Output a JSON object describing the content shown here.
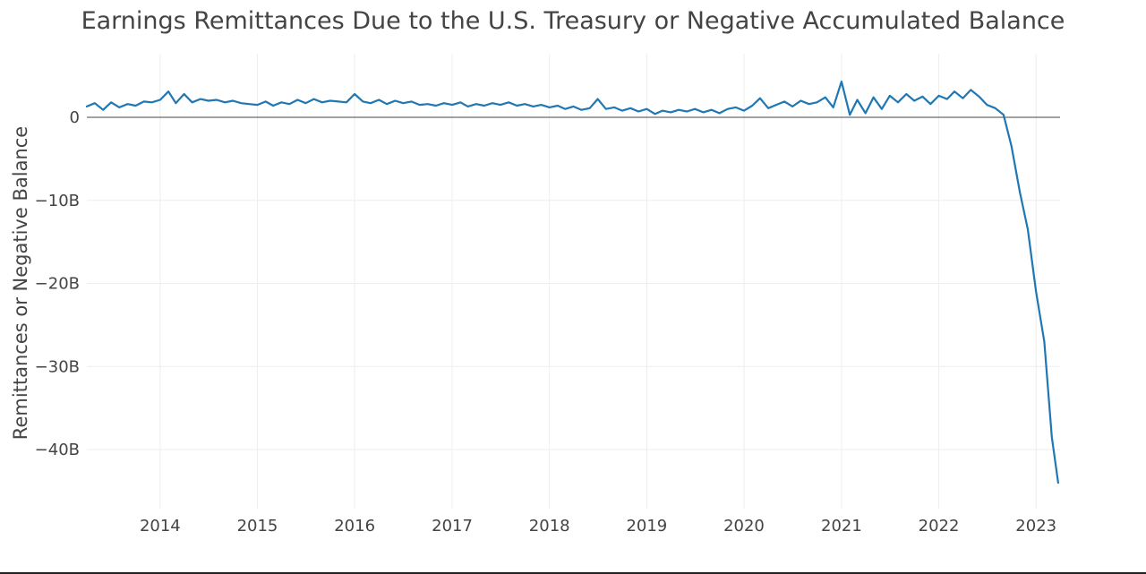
{
  "chart_data": {
    "type": "line",
    "title": "Earnings Remittances Due to the U.S. Treasury or Negative Accumulated Balance",
    "xlabel": "",
    "ylabel": "Remittances or Negative Balance",
    "x_range": [
      "2013-04-01",
      "2023-04-01"
    ],
    "ylim": [
      -46,
      5
    ],
    "x_ticks": [
      {
        "date": "2014-01-01",
        "label": "2014"
      },
      {
        "date": "2015-01-01",
        "label": "2015"
      },
      {
        "date": "2016-01-01",
        "label": "2016"
      },
      {
        "date": "2017-01-01",
        "label": "2017"
      },
      {
        "date": "2018-01-01",
        "label": "2018"
      },
      {
        "date": "2019-01-01",
        "label": "2019"
      },
      {
        "date": "2020-01-01",
        "label": "2020"
      },
      {
        "date": "2021-01-01",
        "label": "2021"
      },
      {
        "date": "2022-01-01",
        "label": "2022"
      },
      {
        "date": "2023-01-01",
        "label": "2023"
      }
    ],
    "y_ticks": [
      {
        "value": 0,
        "label": "0"
      },
      {
        "value": -10,
        "label": "−10B"
      },
      {
        "value": -20,
        "label": "−20B"
      },
      {
        "value": -30,
        "label": "−30B"
      },
      {
        "value": -40,
        "label": "−40B"
      }
    ],
    "grid": true,
    "zero_line": true,
    "series": [
      {
        "color": "#1f77b4",
        "x": [
          "2013-04-01",
          "2013-05-01",
          "2013-06-01",
          "2013-07-01",
          "2013-08-01",
          "2013-09-01",
          "2013-10-01",
          "2013-11-01",
          "2013-12-01",
          "2014-01-01",
          "2014-02-01",
          "2014-03-01",
          "2014-04-01",
          "2014-05-01",
          "2014-06-01",
          "2014-07-01",
          "2014-08-01",
          "2014-09-01",
          "2014-10-01",
          "2014-11-01",
          "2014-12-01",
          "2015-01-01",
          "2015-02-01",
          "2015-03-01",
          "2015-04-01",
          "2015-05-01",
          "2015-06-01",
          "2015-07-01",
          "2015-08-01",
          "2015-09-01",
          "2015-10-01",
          "2015-11-01",
          "2015-12-01",
          "2016-01-01",
          "2016-02-01",
          "2016-03-01",
          "2016-04-01",
          "2016-05-01",
          "2016-06-01",
          "2016-07-01",
          "2016-08-01",
          "2016-09-01",
          "2016-10-01",
          "2016-11-01",
          "2016-12-01",
          "2017-01-01",
          "2017-02-01",
          "2017-03-01",
          "2017-04-01",
          "2017-05-01",
          "2017-06-01",
          "2017-07-01",
          "2017-08-01",
          "2017-09-01",
          "2017-10-01",
          "2017-11-01",
          "2017-12-01",
          "2018-01-01",
          "2018-02-01",
          "2018-03-01",
          "2018-04-01",
          "2018-05-01",
          "2018-06-01",
          "2018-07-01",
          "2018-08-01",
          "2018-09-01",
          "2018-10-01",
          "2018-11-01",
          "2018-12-01",
          "2019-01-01",
          "2019-02-01",
          "2019-03-01",
          "2019-04-01",
          "2019-05-01",
          "2019-06-01",
          "2019-07-01",
          "2019-08-01",
          "2019-09-01",
          "2019-10-01",
          "2019-11-01",
          "2019-12-01",
          "2020-01-01",
          "2020-02-01",
          "2020-03-01",
          "2020-04-01",
          "2020-05-01",
          "2020-06-01",
          "2020-07-01",
          "2020-08-01",
          "2020-09-01",
          "2020-10-01",
          "2020-11-01",
          "2020-12-01",
          "2021-01-01",
          "2021-02-01",
          "2021-03-01",
          "2021-04-01",
          "2021-05-01",
          "2021-06-01",
          "2021-07-01",
          "2021-08-01",
          "2021-09-01",
          "2021-10-01",
          "2021-11-01",
          "2021-12-01",
          "2022-01-01",
          "2022-02-01",
          "2022-03-01",
          "2022-04-01",
          "2022-05-01",
          "2022-06-01",
          "2022-07-01",
          "2022-08-01",
          "2022-09-01",
          "2022-10-01",
          "2022-11-01",
          "2022-12-01",
          "2023-01-01",
          "2023-02-01",
          "2023-03-01",
          "2023-03-25"
        ],
        "values": [
          1.3,
          1.7,
          0.9,
          1.8,
          1.2,
          1.6,
          1.4,
          1.9,
          1.8,
          2.1,
          3.1,
          1.7,
          2.8,
          1.8,
          2.2,
          2.0,
          2.1,
          1.8,
          2.0,
          1.7,
          1.6,
          1.5,
          1.9,
          1.4,
          1.8,
          1.6,
          2.1,
          1.7,
          2.2,
          1.8,
          2.0,
          1.9,
          1.8,
          2.8,
          1.9,
          1.7,
          2.1,
          1.6,
          2.0,
          1.7,
          1.9,
          1.5,
          1.6,
          1.4,
          1.7,
          1.5,
          1.8,
          1.3,
          1.6,
          1.4,
          1.7,
          1.5,
          1.8,
          1.4,
          1.6,
          1.3,
          1.5,
          1.2,
          1.4,
          1.0,
          1.3,
          0.9,
          1.1,
          2.2,
          1.0,
          1.2,
          0.8,
          1.1,
          0.7,
          1.0,
          0.4,
          0.8,
          0.6,
          0.9,
          0.7,
          1.0,
          0.6,
          0.9,
          0.5,
          1.0,
          1.2,
          0.8,
          1.4,
          2.3,
          1.1,
          1.5,
          1.9,
          1.3,
          2.0,
          1.6,
          1.8,
          2.4,
          1.2,
          4.3,
          0.3,
          2.1,
          0.5,
          2.4,
          1.0,
          2.6,
          1.8,
          2.8,
          2.0,
          2.5,
          1.6,
          2.6,
          2.2,
          3.1,
          2.3,
          3.3,
          2.5,
          1.5,
          1.1,
          0.3,
          -3.5,
          -9.0,
          -13.5,
          -21.0,
          -27.0,
          -38.5,
          -44.0
        ]
      }
    ]
  }
}
